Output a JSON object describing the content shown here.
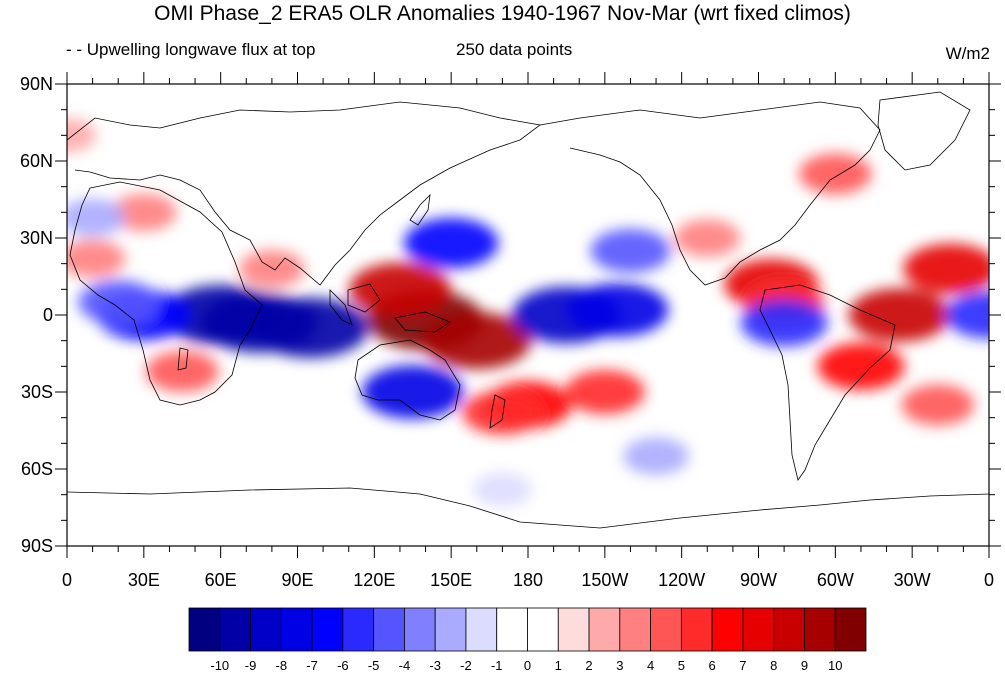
{
  "title": "OMI Phase_2 ERA5 OLR Anomalies 1940-1967 Nov-Mar (wrt fixed climos)",
  "left_string": "- - Upwelling longwave flux at top",
  "center_string": "250 data points",
  "units": "W/m2",
  "chart_data": {
    "type": "heatmap",
    "projection": "cylindrical-equidistant",
    "variable": "OLR anomaly",
    "lon_range": [
      0,
      360
    ],
    "lat_range": [
      -90,
      90
    ],
    "lon_tick_labels": [
      "0",
      "30E",
      "60E",
      "90E",
      "120E",
      "150E",
      "180",
      "150W",
      "120W",
      "90W",
      "60W",
      "30W",
      "0"
    ],
    "lat_tick_labels": [
      "90N",
      "60N",
      "30N",
      "0",
      "30S",
      "60S",
      "90S"
    ],
    "colorbar_labels": [
      "-10",
      "-9",
      "-8",
      "-7",
      "-6",
      "-5",
      "-4",
      "-3",
      "-2",
      "-1",
      "0",
      "1",
      "2",
      "3",
      "4",
      "5",
      "6",
      "7",
      "8",
      "9",
      "10"
    ],
    "colorbar_colors": [
      "#000080",
      "#0000a6",
      "#0000c8",
      "#0000e6",
      "#0000ff",
      "#2a2aff",
      "#5555ff",
      "#8080ff",
      "#aaaaff",
      "#dcdcff",
      "#ffffff",
      "#ffffff",
      "#ffdcdc",
      "#ffaaaa",
      "#ff8080",
      "#ff5555",
      "#ff2a2a",
      "#ff0000",
      "#e60000",
      "#c80000",
      "#a60000",
      "#800000"
    ],
    "anomaly_centers": [
      {
        "lon": 75,
        "lat": -3,
        "value": -10
      },
      {
        "lon": 60,
        "lat": 0,
        "value": -10
      },
      {
        "lon": 95,
        "lat": -5,
        "value": -10
      },
      {
        "lon": 30,
        "lat": 0,
        "value": -7
      },
      {
        "lon": 20,
        "lat": 5,
        "value": -5
      },
      {
        "lon": 140,
        "lat": -2,
        "value": 10
      },
      {
        "lon": 160,
        "lat": -10,
        "value": 9
      },
      {
        "lon": 130,
        "lat": 10,
        "value": 8
      },
      {
        "lon": 195,
        "lat": 0,
        "value": -9
      },
      {
        "lon": 215,
        "lat": 2,
        "value": -8
      },
      {
        "lon": 135,
        "lat": -30,
        "value": -8
      },
      {
        "lon": 150,
        "lat": 28,
        "value": -7
      },
      {
        "lon": 220,
        "lat": 25,
        "value": -5
      },
      {
        "lon": 275,
        "lat": 12,
        "value": 7
      },
      {
        "lon": 280,
        "lat": 5,
        "value": 5
      },
      {
        "lon": 325,
        "lat": 0,
        "value": 8
      },
      {
        "lon": 345,
        "lat": 18,
        "value": 7
      },
      {
        "lon": 310,
        "lat": -20,
        "value": 6
      },
      {
        "lon": 280,
        "lat": -3,
        "value": -6
      },
      {
        "lon": 180,
        "lat": -35,
        "value": 6
      },
      {
        "lon": 210,
        "lat": -30,
        "value": 5
      },
      {
        "lon": 170,
        "lat": -38,
        "value": 5
      },
      {
        "lon": 45,
        "lat": -22,
        "value": 4
      },
      {
        "lon": 10,
        "lat": 22,
        "value": 3
      },
      {
        "lon": 80,
        "lat": 18,
        "value": 3
      },
      {
        "lon": 30,
        "lat": 40,
        "value": 3
      },
      {
        "lon": 300,
        "lat": 55,
        "value": 4
      },
      {
        "lon": 340,
        "lat": -35,
        "value": 4
      },
      {
        "lon": 10,
        "lat": 38,
        "value": -3
      },
      {
        "lon": 230,
        "lat": -55,
        "value": -3
      },
      {
        "lon": 170,
        "lat": -68,
        "value": -2
      },
      {
        "lon": 250,
        "lat": 30,
        "value": 3
      },
      {
        "lon": 0,
        "lat": 70,
        "value": 2
      },
      {
        "lon": 360,
        "lat": 0,
        "value": -6
      }
    ]
  }
}
